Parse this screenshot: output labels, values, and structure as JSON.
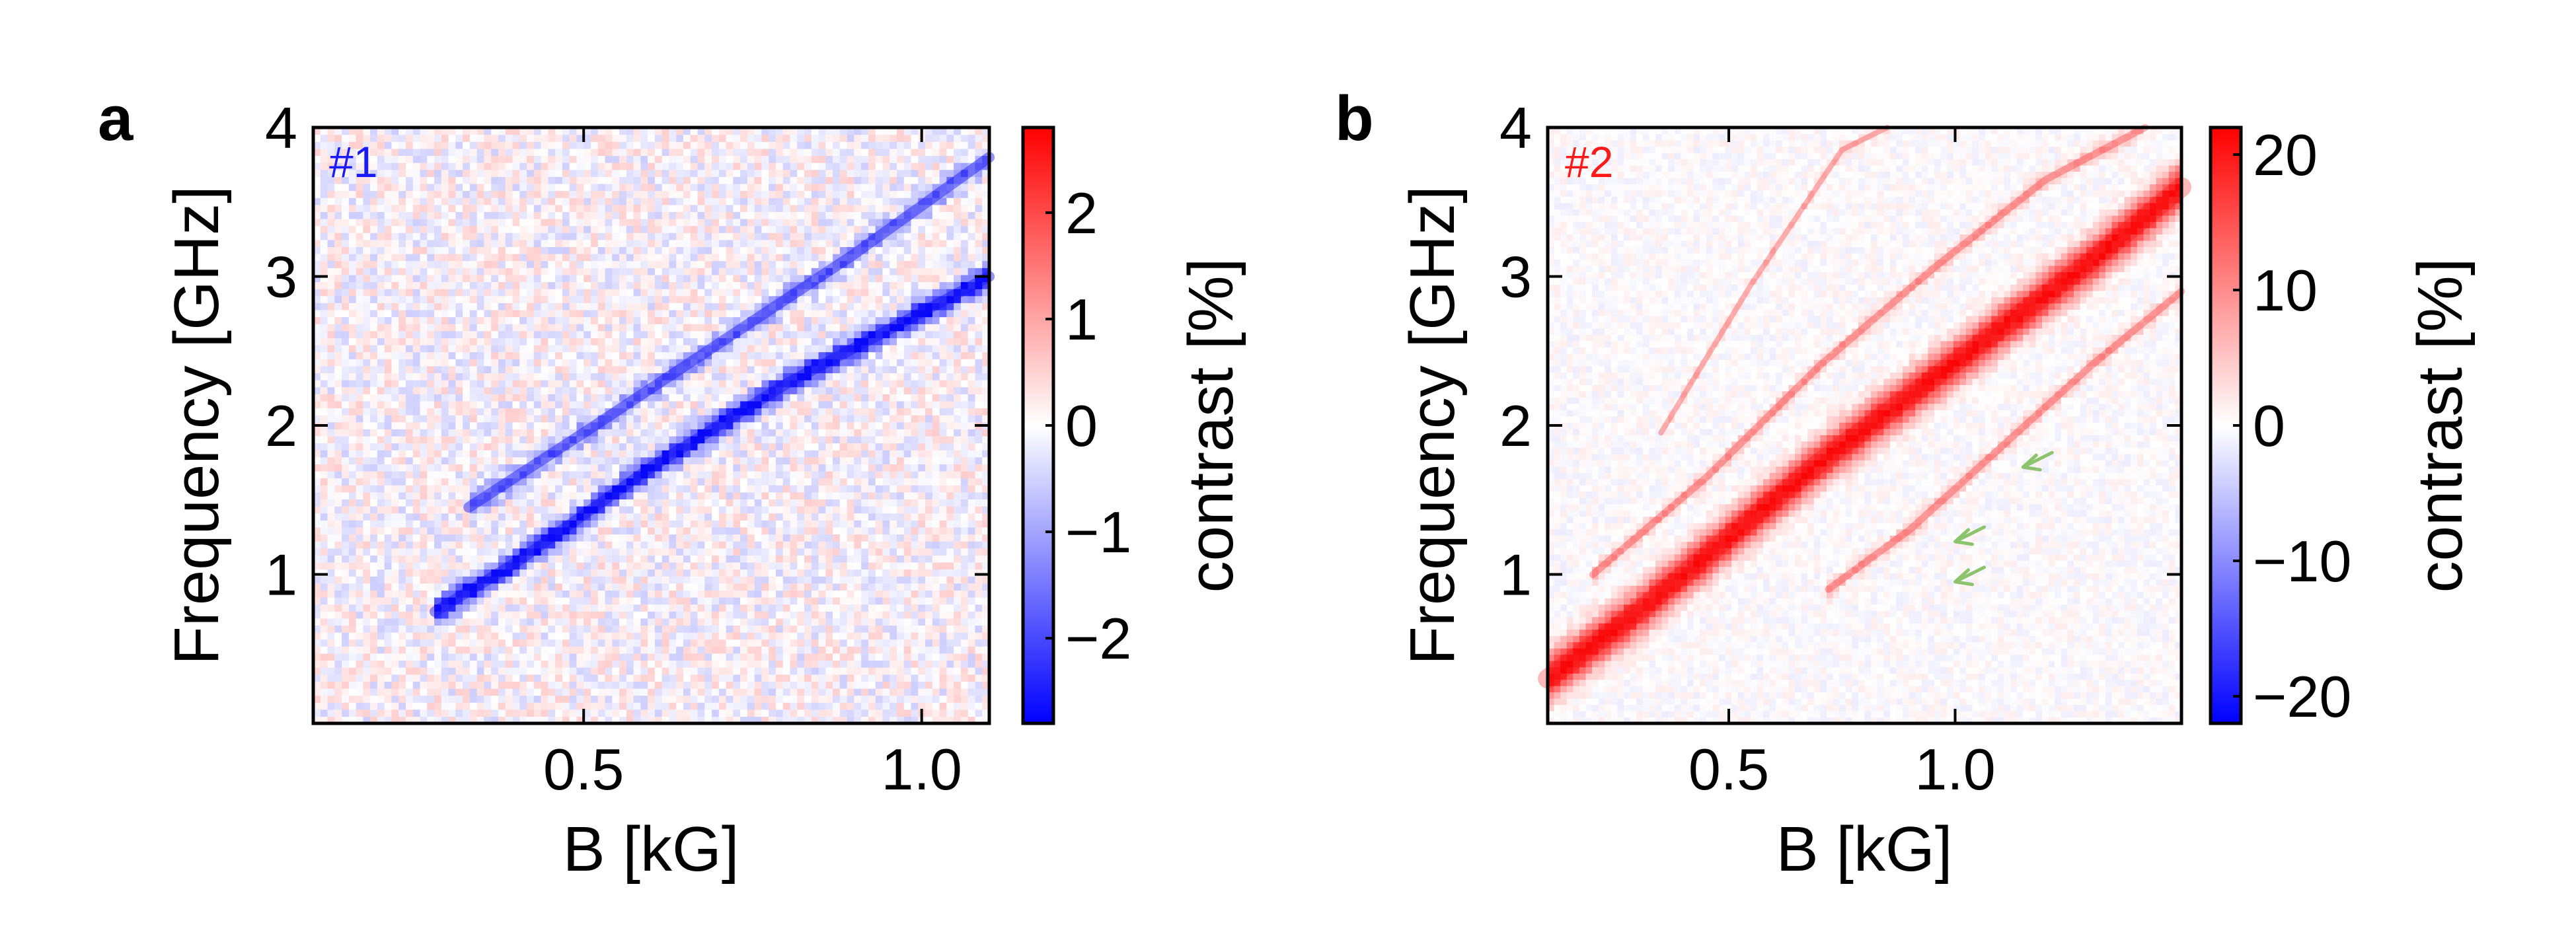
{
  "chart_data": [
    {
      "type": "heatmap",
      "panel_label": "a",
      "sample_label": "#1",
      "sample_color": "#1a1aff",
      "xlabel": "B [kG]",
      "ylabel": "Frequency [GHz]",
      "colorbar_label": "contrast [%]",
      "xlim": [
        0.1,
        1.1
      ],
      "ylim": [
        0.0,
        4.0
      ],
      "xticks": [
        0.5,
        1.0
      ],
      "xtick_labels": [
        "0.5",
        "1.0"
      ],
      "yticks": [
        1,
        2,
        3,
        4
      ],
      "ytick_labels": [
        "1",
        "2",
        "3",
        "4"
      ],
      "clim": [
        -2.8,
        2.8
      ],
      "cbar_ticks": [
        -2,
        -1,
        0,
        1,
        2
      ],
      "cbar_tick_labels": [
        "−2",
        "−1",
        "0",
        "1",
        "2"
      ],
      "grid": false,
      "colormap": "bwr",
      "noise_amplitude": 0.55,
      "features": [
        {
          "name": "lower resonance",
          "amplitude": -2.7,
          "width_ghz": 0.06,
          "x": [
            0.28,
            0.4,
            0.6,
            0.8,
            1.0,
            1.1
          ],
          "y": [
            0.75,
            1.08,
            1.72,
            2.28,
            2.76,
            3.0
          ]
        },
        {
          "name": "upper resonance",
          "amplitude": -1.3,
          "width_ghz": 0.06,
          "x": [
            0.33,
            0.5,
            0.7,
            0.9,
            1.1
          ],
          "y": [
            1.45,
            1.95,
            2.55,
            3.15,
            3.8
          ]
        }
      ]
    },
    {
      "type": "heatmap",
      "panel_label": "b",
      "sample_label": "#2",
      "sample_color": "#ff1a1a",
      "xlabel": "B [kG]",
      "ylabel": "Frequency [GHz]",
      "colorbar_label": "contrast [%]",
      "xlim": [
        0.1,
        1.5
      ],
      "ylim": [
        0.0,
        4.0
      ],
      "xticks": [
        0.5,
        1.0
      ],
      "xtick_labels": [
        "0.5",
        "1.0"
      ],
      "yticks": [
        1,
        2,
        3,
        4
      ],
      "ytick_labels": [
        "1",
        "2",
        "3",
        "4"
      ],
      "clim": [
        -22,
        22
      ],
      "cbar_ticks": [
        -20,
        -10,
        0,
        10,
        20
      ],
      "cbar_tick_labels": [
        "−20",
        "−10",
        "0",
        "10",
        "20"
      ],
      "grid": false,
      "colormap": "bwr",
      "noise_amplitude": 1.6,
      "features": [
        {
          "name": "main resonance",
          "amplitude": 21,
          "width_ghz": 0.11,
          "x": [
            0.1,
            0.3,
            0.5,
            0.7,
            0.9,
            1.1,
            1.3,
            1.5
          ],
          "y": [
            0.3,
            0.75,
            1.25,
            1.75,
            2.2,
            2.65,
            3.1,
            3.6
          ]
        },
        {
          "name": "upper satellite",
          "amplitude": 6,
          "width_ghz": 0.04,
          "x": [
            0.2,
            0.45,
            0.7,
            0.95,
            1.2,
            1.42
          ],
          "y": [
            1.0,
            1.65,
            2.4,
            3.05,
            3.65,
            4.0
          ]
        },
        {
          "name": "far upper satellite",
          "amplitude": 3,
          "width_ghz": 0.03,
          "x": [
            0.35,
            0.55,
            0.75,
            0.85
          ],
          "y": [
            1.95,
            2.95,
            3.85,
            4.0
          ]
        },
        {
          "name": "lower satellite",
          "amplitude": 6,
          "width_ghz": 0.04,
          "x": [
            0.72,
            0.9,
            1.1,
            1.3,
            1.5
          ],
          "y": [
            0.9,
            1.3,
            1.85,
            2.4,
            2.9
          ]
        }
      ],
      "annotations": [
        {
          "type": "arrow",
          "color": "#8cc46e",
          "tip_x": 1.0,
          "tip_y": 0.95
        },
        {
          "type": "arrow",
          "color": "#8cc46e",
          "tip_x": 1.0,
          "tip_y": 1.22
        },
        {
          "type": "arrow",
          "color": "#8cc46e",
          "tip_x": 1.15,
          "tip_y": 1.72
        }
      ]
    }
  ]
}
